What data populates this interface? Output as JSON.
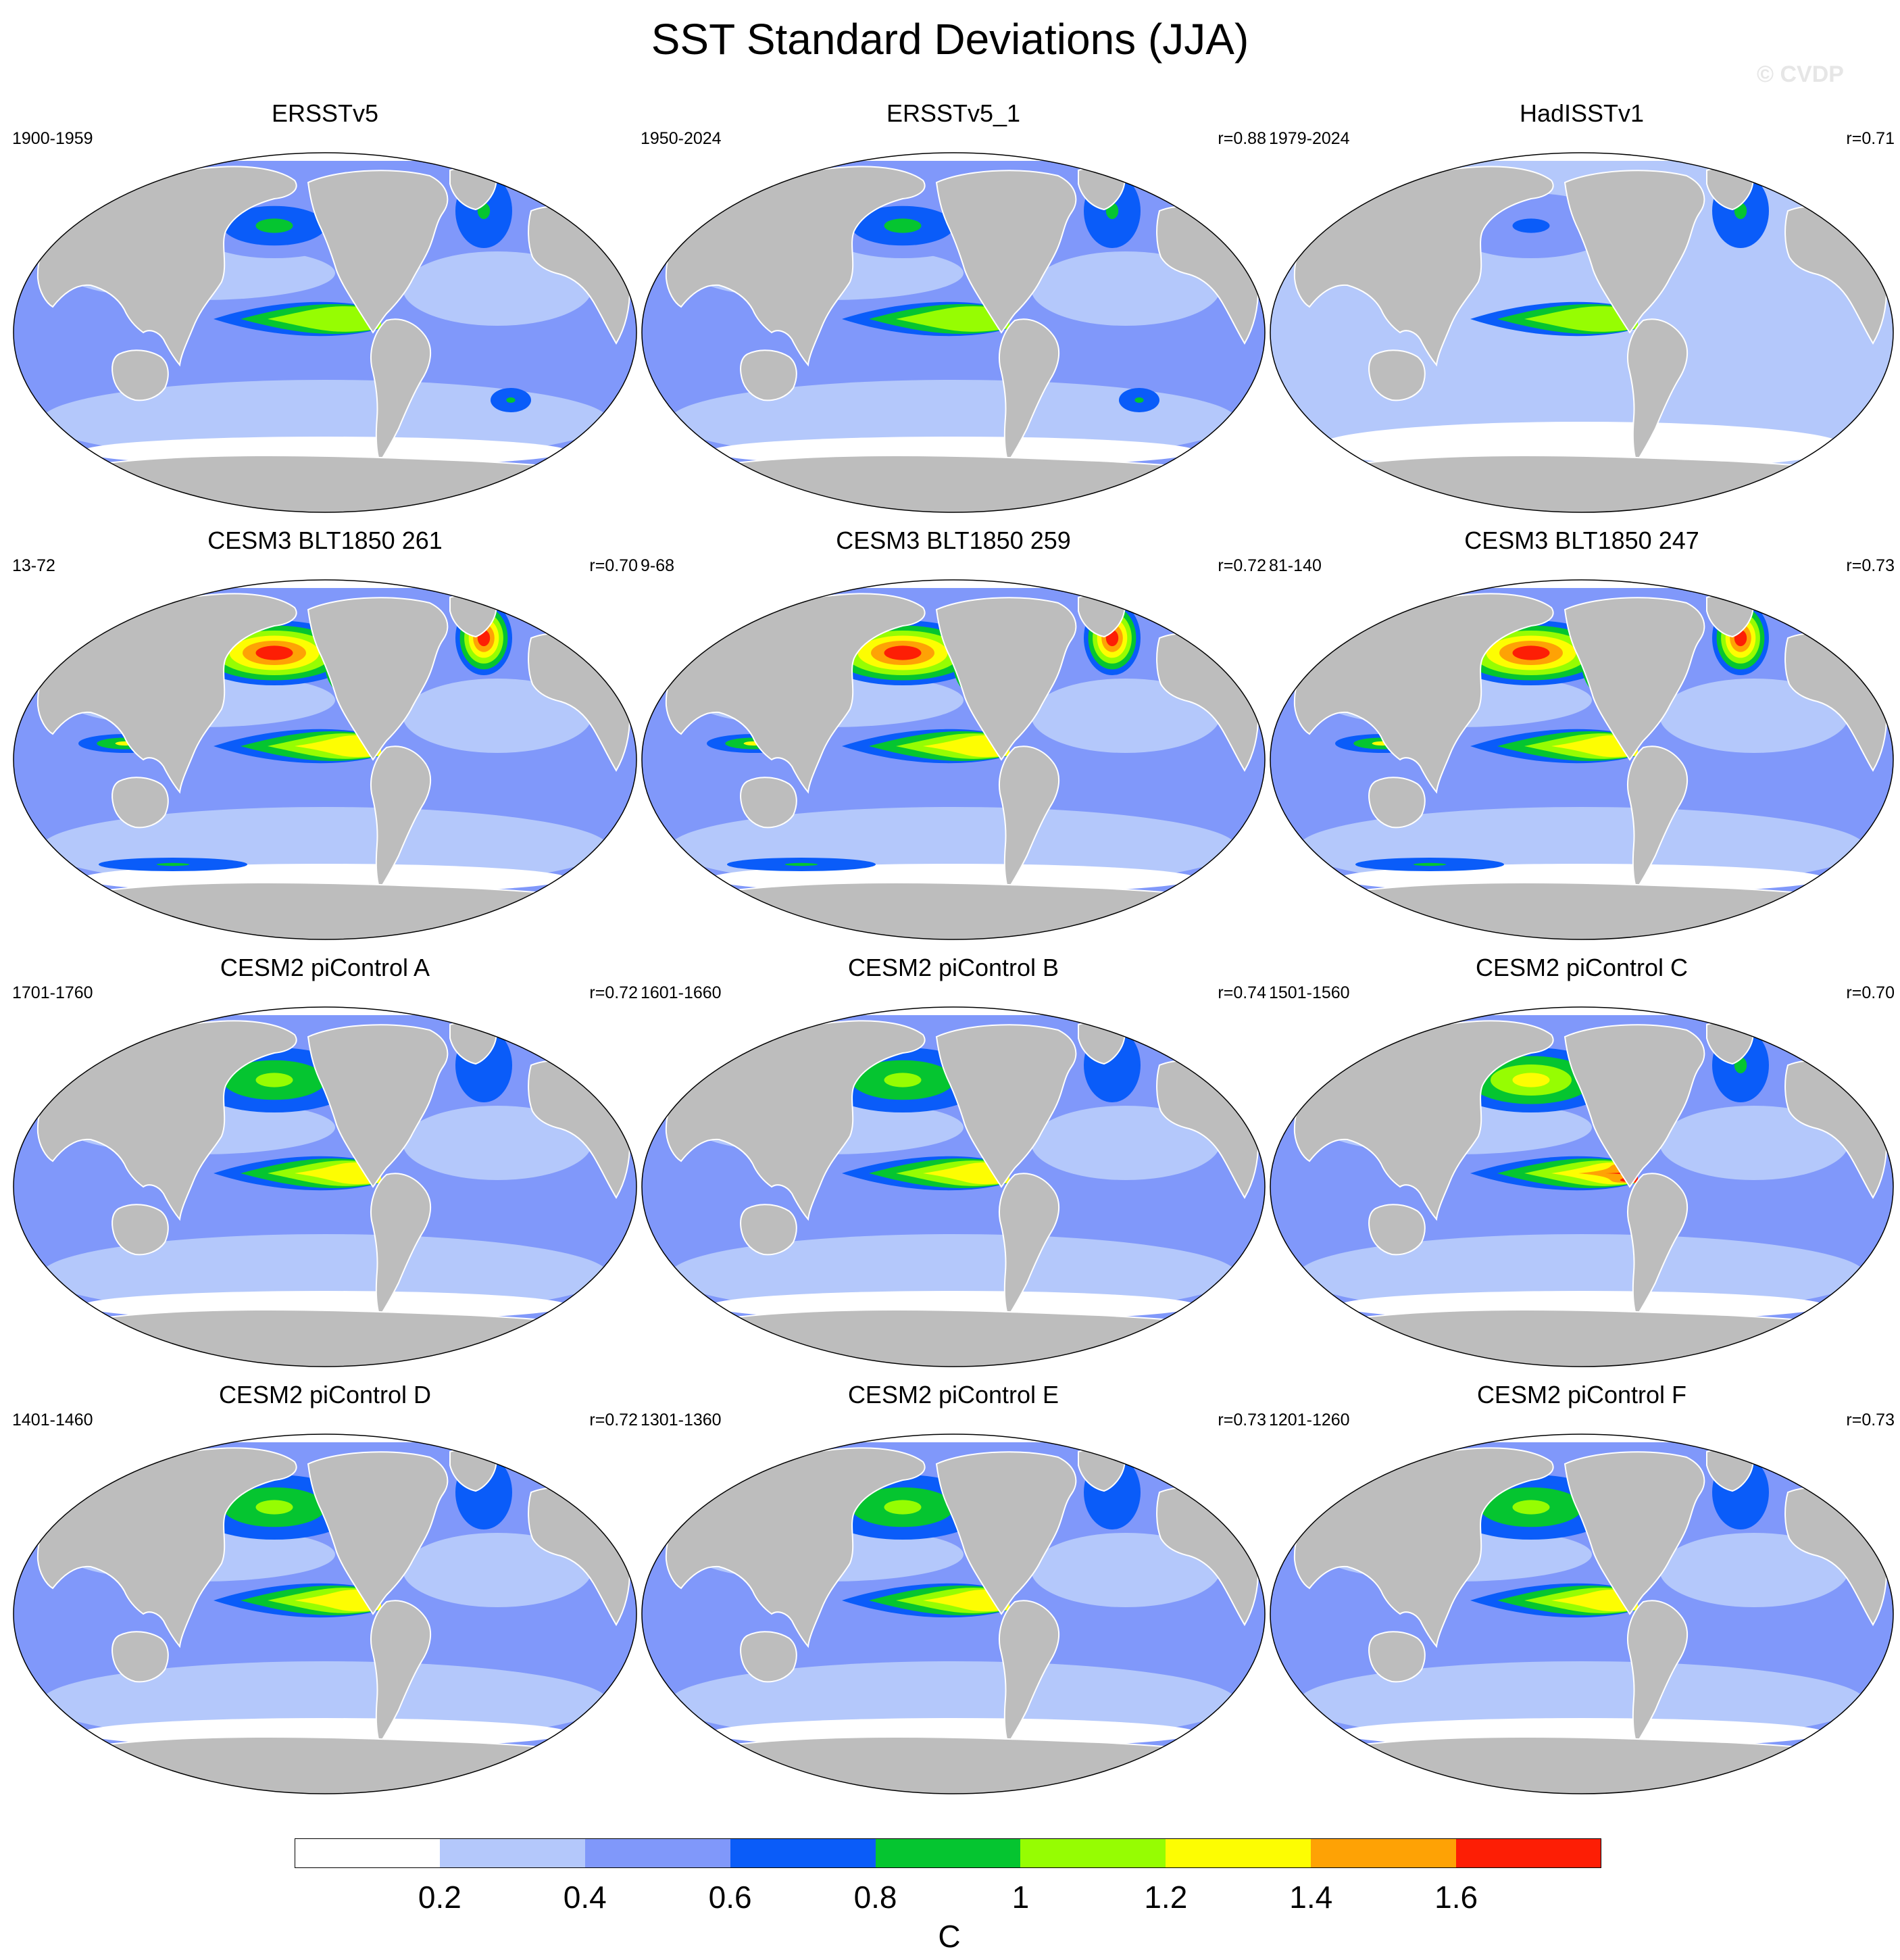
{
  "title": "SST Standard Deviations (JJA)",
  "watermark": "© CVDP",
  "colors": {
    "land": "#bdbdbd",
    "levels": [
      "#ffffff",
      "#b4c8fb",
      "#8098fa",
      "#0a5cf9",
      "#05c530",
      "#96fd02",
      "#fdfd02",
      "#fea205",
      "#fd1e05"
    ]
  },
  "panels": [
    {
      "title": "ERSSTv5",
      "period": "1900-1959",
      "r": "",
      "variant": 0
    },
    {
      "title": "ERSSTv5_1",
      "period": "1950-2024",
      "r": "r=0.88",
      "variant": 0
    },
    {
      "title": "HadISSTv1",
      "period": "1979-2024",
      "r": "r=0.71",
      "variant": 1
    },
    {
      "title": "CESM3 BLT1850 261",
      "period": "13-72",
      "r": "r=0.70",
      "variant": 2
    },
    {
      "title": "CESM3 BLT1850 259",
      "period": "9-68",
      "r": "r=0.72",
      "variant": 2
    },
    {
      "title": "CESM3 BLT1850 247",
      "period": "81-140",
      "r": "r=0.73",
      "variant": 2
    },
    {
      "title": "CESM2 piControl A",
      "period": "1701-1760",
      "r": "r=0.72",
      "variant": 3
    },
    {
      "title": "CESM2 piControl B",
      "period": "1601-1660",
      "r": "r=0.74",
      "variant": 3
    },
    {
      "title": "CESM2 piControl C",
      "period": "1501-1560",
      "r": "r=0.70",
      "variant": 4
    },
    {
      "title": "CESM2 piControl D",
      "period": "1401-1460",
      "r": "r=0.72",
      "variant": 3
    },
    {
      "title": "CESM2 piControl E",
      "period": "1301-1360",
      "r": "r=0.73",
      "variant": 3
    },
    {
      "title": "CESM2 piControl F",
      "period": "1201-1260",
      "r": "r=0.73",
      "variant": 3
    }
  ],
  "colorbar": {
    "labels": [
      "0.2",
      "0.4",
      "0.6",
      "0.8",
      "1",
      "1.2",
      "1.4",
      "1.6"
    ],
    "unit": "C"
  }
}
